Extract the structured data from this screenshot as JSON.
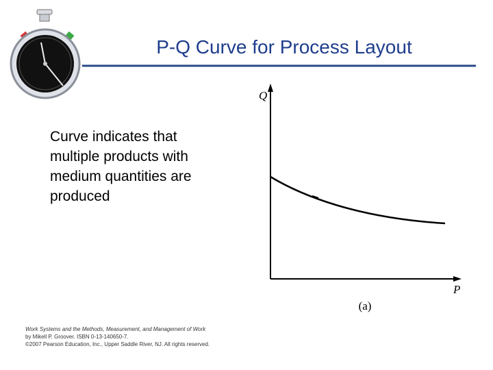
{
  "slide": {
    "title": "P-Q Curve for Process Layout",
    "body_lines": [
      "Curve indicates that",
      "multiple products with",
      "medium quantities are",
      "produced"
    ],
    "figure": {
      "y_axis_label": "Q",
      "x_axis_label": "P",
      "caption": "(a)"
    },
    "footer_lines": [
      "Work Systems and the Methods, Measurement, and Management of Work",
      "by Mikell P. Groover. ISBN 0-13-140650-7.",
      "©2007 Pearson Education, Inc., Upper Saddle River, NJ.  All rights reserved."
    ]
  }
}
